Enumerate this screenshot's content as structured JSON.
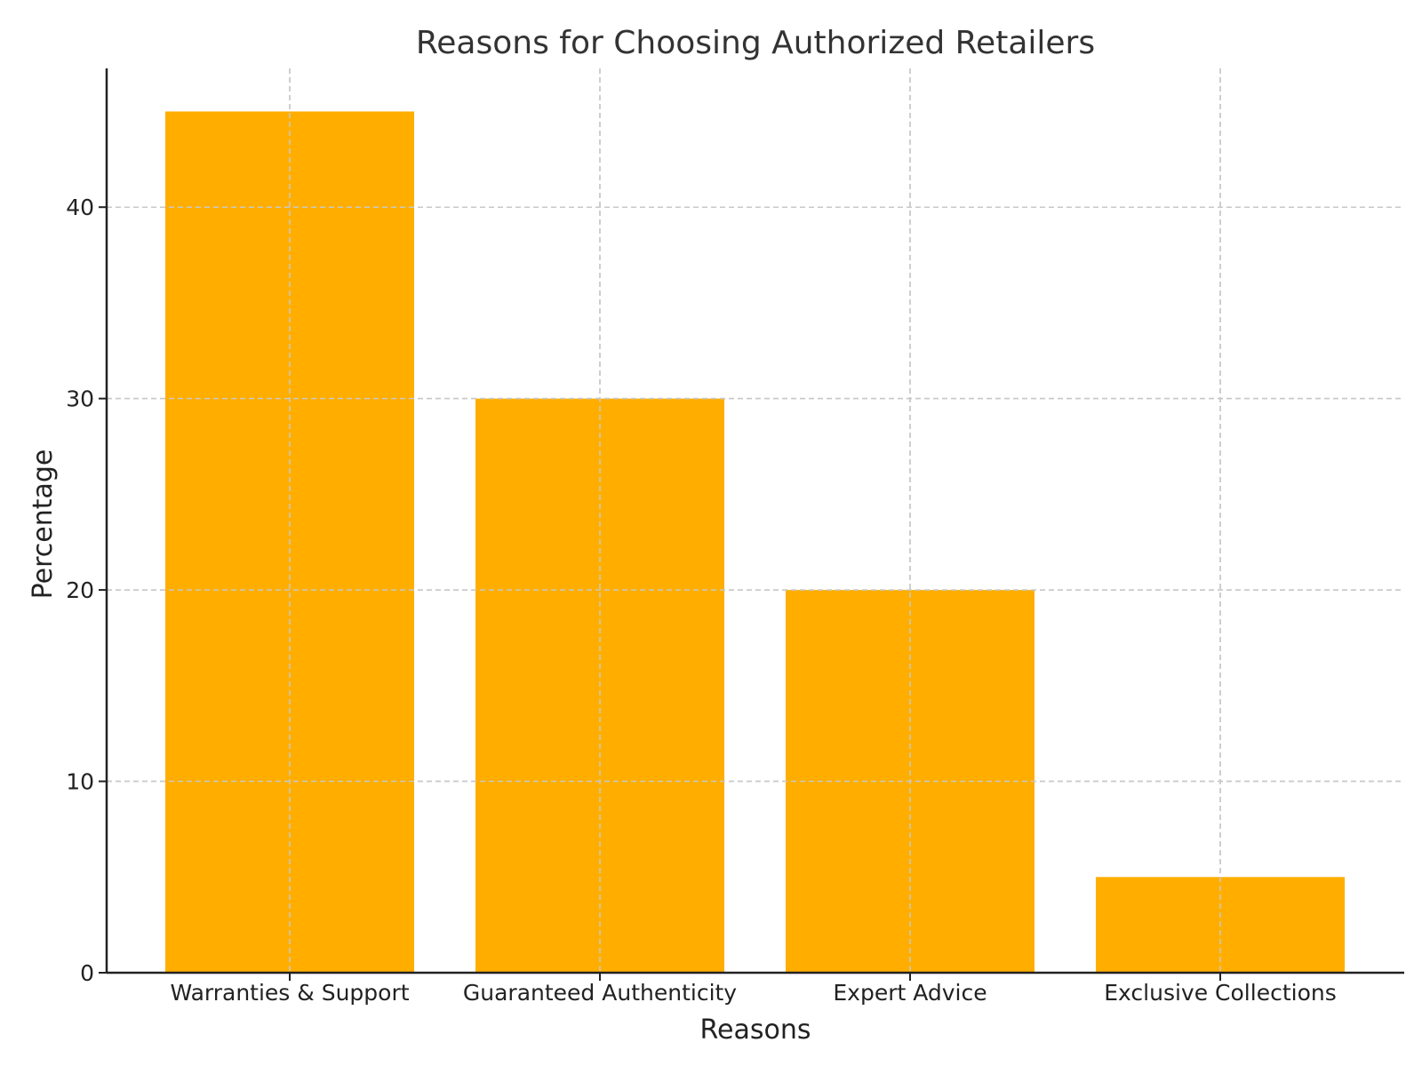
{
  "chart_data": {
    "type": "bar",
    "title": "Reasons for Choosing Authorized Retailers",
    "xlabel": "Reasons",
    "ylabel": "Percentage",
    "categories": [
      "Warranties & Support",
      "Guaranteed Authenticity",
      "Expert Advice",
      "Exclusive Collections"
    ],
    "values": [
      45,
      30,
      20,
      5
    ],
    "ylim": [
      0,
      47.25
    ],
    "yticks": [
      0,
      10,
      20,
      30,
      40
    ],
    "bar_color": "#FFAE00",
    "grid": true
  }
}
